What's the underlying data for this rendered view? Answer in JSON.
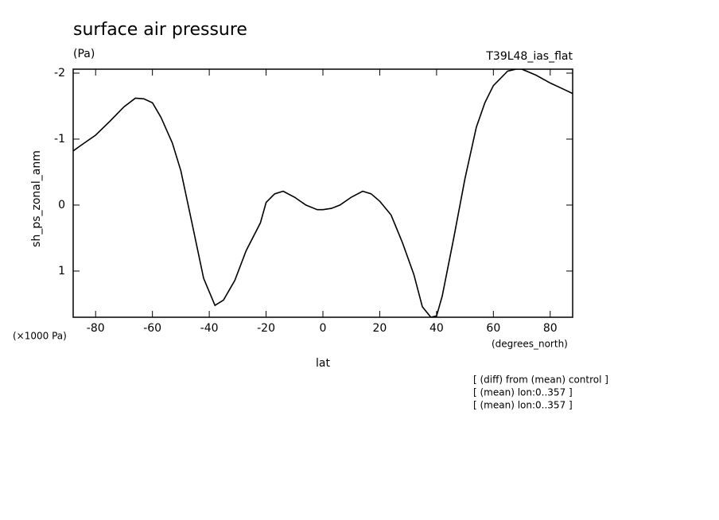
{
  "chart_data": {
    "type": "line",
    "title": "surface air pressure",
    "units": "(Pa)",
    "run_label": "T39L48_ias_flat",
    "y_label": "sh_ps_zonal_anm",
    "y_unit_label": "(×1000 Pa)",
    "x_unit_label": "(degrees_north)",
    "x_label": "lat",
    "notes": [
      "[ (diff) from (mean) control ]",
      "[ (mean) lon:0..357 ]",
      "[ (mean) lon:0..357 ]"
    ],
    "x": [
      -87.9,
      -85,
      -80,
      -75,
      -70,
      -66,
      -63,
      -60,
      -57,
      -53,
      -50,
      -46,
      -42,
      -38,
      -35,
      -31,
      -27,
      -22,
      -20,
      -17,
      -14,
      -10,
      -6,
      -2,
      0,
      3,
      6,
      10,
      14,
      17,
      20,
      24,
      28,
      32,
      35,
      38,
      40,
      42,
      46,
      50,
      54,
      57,
      60,
      65,
      68,
      70,
      75,
      80,
      85,
      87.9
    ],
    "series": [
      {
        "color": "#000000",
        "values": [
          -0.82,
          -0.91,
          -1.06,
          -1.27,
          -1.49,
          -1.62,
          -1.61,
          -1.55,
          -1.33,
          -0.94,
          -0.52,
          0.29,
          1.11,
          1.52,
          1.44,
          1.14,
          0.69,
          0.27,
          -0.04,
          -0.17,
          -0.21,
          -0.12,
          0,
          0.07,
          0.07,
          0.05,
          0,
          -0.12,
          -0.21,
          -0.17,
          -0.06,
          0.15,
          0.57,
          1.05,
          1.54,
          1.7,
          1.68,
          1.38,
          0.51,
          -0.4,
          -1.18,
          -1.55,
          -1.81,
          -2.03,
          -2.06,
          -2.06,
          -1.97,
          -1.85,
          -1.75,
          -1.69
        ]
      }
    ],
    "xlim": [
      -87.9,
      87.9
    ],
    "ylim": [
      1.7,
      -2.06
    ],
    "xticks": [
      -80,
      -60,
      -40,
      -20,
      0,
      20,
      40,
      60,
      80
    ],
    "yticks": [
      -2,
      -1,
      0,
      1
    ]
  }
}
